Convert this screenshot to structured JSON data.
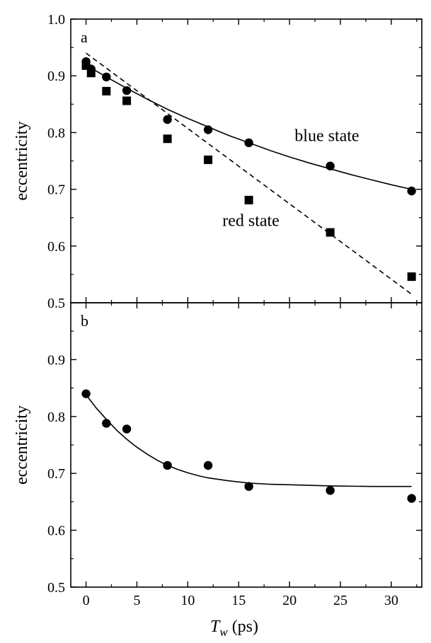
{
  "chart_data": [
    {
      "type": "scatter",
      "panel_label": "a",
      "xlabel": "",
      "ylabel": "eccentricity",
      "xlim": [
        -1.5,
        33
      ],
      "ylim": [
        0.5,
        1.0
      ],
      "xticks": [
        0,
        5,
        10,
        15,
        20,
        25,
        30
      ],
      "yticks": [
        0.5,
        0.6,
        0.7,
        0.8,
        0.9,
        1.0
      ],
      "ytick_labels": [
        "0.5",
        "0.6",
        "0.7",
        "0.8",
        "0.9",
        "1.0"
      ],
      "series": [
        {
          "name": "blue state",
          "marker": "circle",
          "x": [
            0,
            0.5,
            2,
            4,
            8,
            12,
            16,
            24,
            32
          ],
          "y": [
            0.925,
            0.912,
            0.898,
            0.874,
            0.823,
            0.805,
            0.782,
            0.741,
            0.697
          ],
          "fit": {
            "style": "solid",
            "x": [
              0,
              2,
              4,
              6,
              8,
              10,
              12,
              14,
              16,
              18,
              20,
              22,
              24,
              26,
              28,
              30,
              32
            ],
            "y": [
              0.919,
              0.898,
              0.878,
              0.859,
              0.841,
              0.825,
              0.81,
              0.795,
              0.782,
              0.769,
              0.757,
              0.746,
              0.736,
              0.726,
              0.717,
              0.708,
              0.7
            ]
          }
        },
        {
          "name": "red state",
          "marker": "square",
          "x": [
            0,
            0.5,
            2,
            4,
            8,
            12,
            16,
            24,
            32
          ],
          "y": [
            0.918,
            0.905,
            0.873,
            0.856,
            0.789,
            0.752,
            0.681,
            0.624,
            0.546
          ],
          "fit": {
            "style": "dashed",
            "x": [
              0,
              32
            ],
            "y": [
              0.94,
              0.515
            ]
          }
        }
      ],
      "annotations": [
        {
          "text": "blue state",
          "x": 20.5,
          "y": 0.785
        },
        {
          "text": "red state",
          "x": 13.4,
          "y": 0.635
        }
      ]
    },
    {
      "type": "scatter",
      "panel_label": "b",
      "xlabel": "T_w (ps)",
      "ylabel": "eccentricity",
      "xlim": [
        -1.5,
        33
      ],
      "ylim": [
        0.5,
        1.0
      ],
      "xticks": [
        0,
        5,
        10,
        15,
        20,
        25,
        30
      ],
      "xtick_labels": [
        "0",
        "5",
        "10",
        "15",
        "20",
        "25",
        "30"
      ],
      "yticks": [
        0.5,
        0.6,
        0.7,
        0.8,
        0.9
      ],
      "ytick_labels": [
        "0.5",
        "0.6",
        "0.7",
        "0.8",
        "0.9"
      ],
      "series": [
        {
          "marker": "circle",
          "x": [
            0,
            2,
            4,
            8,
            12,
            16,
            24,
            32
          ],
          "y": [
            0.84,
            0.788,
            0.778,
            0.714,
            0.714,
            0.677,
            0.67,
            0.656
          ],
          "fit": {
            "style": "solid",
            "x": [
              0,
              1,
              2,
              3,
              4,
              5,
              6,
              7,
              8,
              9,
              10,
              11,
              12,
              14,
              16,
              18,
              20,
              24,
              28,
              32
            ],
            "y": [
              0.838,
              0.815,
              0.795,
              0.776,
              0.76,
              0.746,
              0.734,
              0.723,
              0.714,
              0.707,
              0.701,
              0.696,
              0.692,
              0.687,
              0.683,
              0.681,
              0.68,
              0.678,
              0.677,
              0.677
            ]
          }
        }
      ]
    }
  ],
  "figure": {
    "xlabel_main": "T",
    "xlabel_sub": "w",
    "xlabel_unit": " (ps)"
  }
}
